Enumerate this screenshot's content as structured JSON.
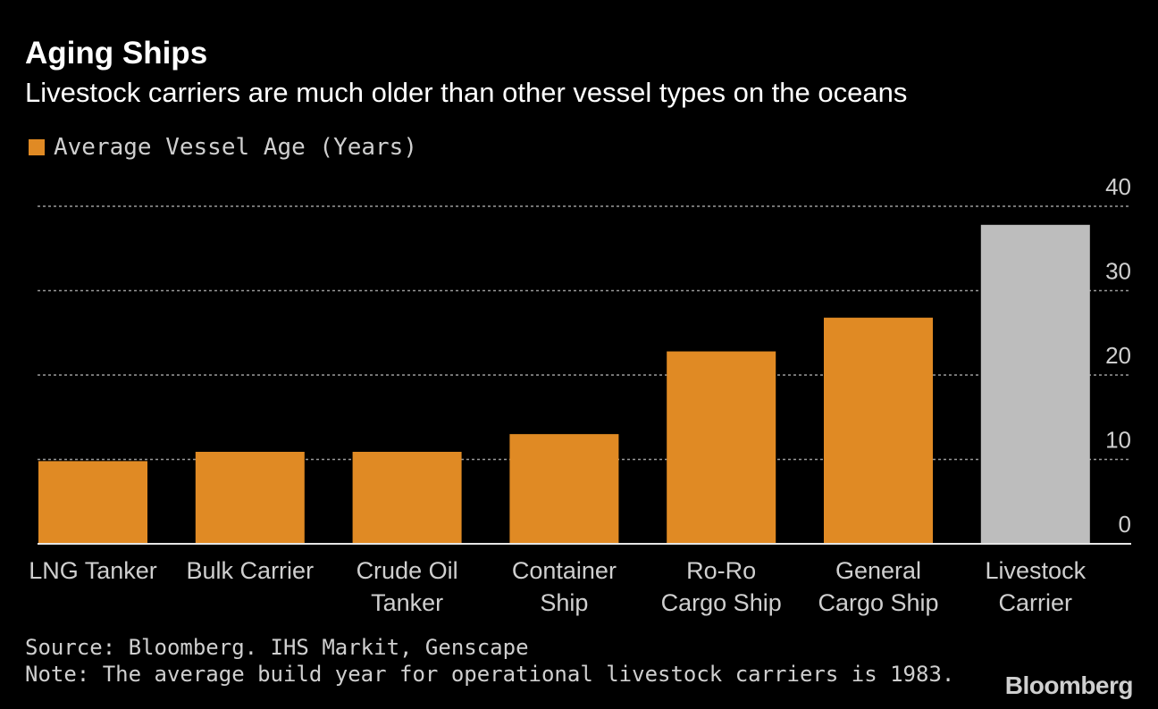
{
  "colors": {
    "background": "#000000",
    "bar_default": "#e08a24",
    "bar_highlight": "#bdbdbd",
    "grid": "#9a9a9a",
    "text": "#ffffff",
    "muted_text": "#cfcfcf"
  },
  "chart_data": {
    "type": "bar",
    "title": "Aging Ships",
    "subtitle": "Livestock carriers are much older than other vessel types on the oceans",
    "legend": {
      "label": "Average Vessel Age (Years)",
      "placement": "top-left"
    },
    "categories": [
      [
        "LNG Tanker"
      ],
      [
        "Bulk Carrier"
      ],
      [
        "Crude Oil",
        "Tanker"
      ],
      [
        "Container",
        "Ship"
      ],
      [
        "Ro-Ro",
        "Cargo Ship"
      ],
      [
        "General",
        "Cargo Ship"
      ],
      [
        "Livestock",
        "Carrier"
      ]
    ],
    "series": [
      {
        "name": "Average Vessel Age (Years)",
        "values": [
          9.8,
          10.9,
          10.9,
          13.0,
          22.8,
          26.8,
          37.8
        ]
      }
    ],
    "highlight_index": 6,
    "ylim": [
      0,
      40
    ],
    "yticks": [
      0,
      10,
      20,
      30,
      40
    ],
    "y_axis_side": "right",
    "grid": true
  },
  "footer": {
    "source": "Source: Bloomberg. IHS Markit, Genscape",
    "note": "Note: The average build year for operational livestock carriers is 1983.",
    "brand": "Bloomberg"
  }
}
